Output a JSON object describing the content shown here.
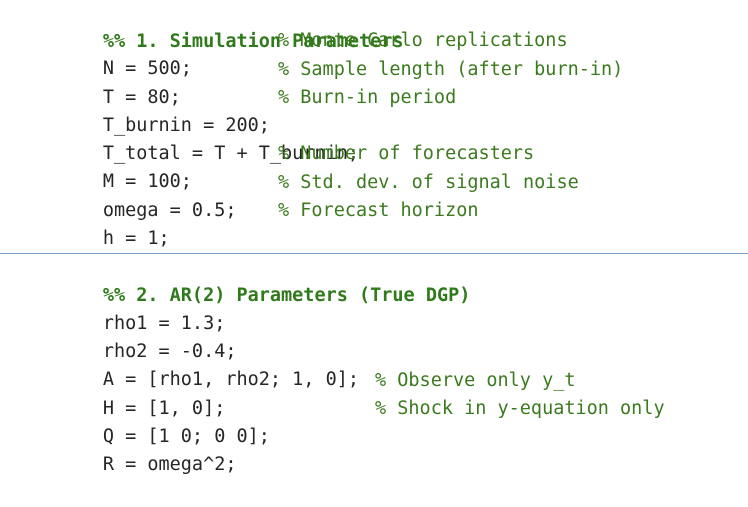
{
  "section1": {
    "title": "%% 1. Simulation Parameters",
    "lines": [
      {
        "code": "N = 500;",
        "comment": "% Monte Carlo replications"
      },
      {
        "code": "T = 80;",
        "comment": "% Sample length (after burn-in)"
      },
      {
        "code": "T_burnin = 200;",
        "comment": "% Burn-in period"
      },
      {
        "code": "T_total = T + T_burnin;",
        "comment": ""
      },
      {
        "code": "M = 100;",
        "comment": "% Number of forecasters"
      },
      {
        "code": "omega = 0.5;",
        "comment": "% Std. dev. of signal noise"
      },
      {
        "code": "h = 1;",
        "comment": "% Forecast horizon"
      }
    ]
  },
  "section2": {
    "title": "%% 2. AR(2) Parameters (True DGP)",
    "lines": [
      {
        "code": "rho1 = 1.3;",
        "comment": ""
      },
      {
        "code": "rho2 = -0.4;",
        "comment": ""
      },
      {
        "code": "A = [rho1, rho2; 1, 0];",
        "comment": ""
      },
      {
        "code": "H = [1, 0];",
        "comment": "% Observe only y_t"
      },
      {
        "code": "Q = [1 0; 0 0];",
        "comment": "% Shock in y-equation only"
      },
      {
        "code": "R = omega^2;",
        "comment": ""
      }
    ]
  },
  "colors": {
    "code_text": "#262626",
    "comment": "#3b7a1e",
    "section_title": "#2f7a1a",
    "section_divider": "#7aa2c8",
    "background": "#ffffff"
  }
}
